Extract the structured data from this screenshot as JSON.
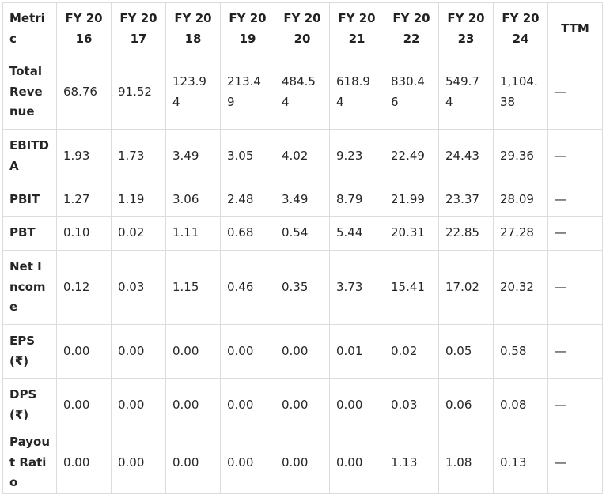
{
  "table": {
    "headers": [
      "Metric",
      "FY 2016",
      "FY 2017",
      "FY 2018",
      "FY 2019",
      "FY 2020",
      "FY 2021",
      "FY 2022",
      "FY 2023",
      "FY 2024",
      "TTM"
    ],
    "rows": [
      {
        "metric": "Total Revenue",
        "values": [
          "68.76",
          "91.52",
          "123.94",
          "213.49",
          "484.54",
          "618.94",
          "830.46",
          "549.74",
          "1,104.38",
          "—"
        ]
      },
      {
        "metric": "EBITDA",
        "values": [
          "1.93",
          "1.73",
          "3.49",
          "3.05",
          "4.02",
          "9.23",
          "22.49",
          "24.43",
          "29.36",
          "—"
        ]
      },
      {
        "metric": "PBIT",
        "values": [
          "1.27",
          "1.19",
          "3.06",
          "2.48",
          "3.49",
          "8.79",
          "21.99",
          "23.37",
          "28.09",
          "—"
        ]
      },
      {
        "metric": "PBT",
        "values": [
          "0.10",
          "0.02",
          "1.11",
          "0.68",
          "0.54",
          "5.44",
          "20.31",
          "22.85",
          "27.28",
          "—"
        ]
      },
      {
        "metric": "Net Income",
        "values": [
          "0.12",
          "0.03",
          "1.15",
          "0.46",
          "0.35",
          "3.73",
          "15.41",
          "17.02",
          "20.32",
          "—"
        ]
      },
      {
        "metric": "EPS (₹)",
        "values": [
          "0.00",
          "0.00",
          "0.00",
          "0.00",
          "0.00",
          "0.01",
          "0.02",
          "0.05",
          "0.58",
          "—"
        ]
      },
      {
        "metric": "DPS (₹)",
        "values": [
          "0.00",
          "0.00",
          "0.00",
          "0.00",
          "0.00",
          "0.00",
          "0.03",
          "0.06",
          "0.08",
          "—"
        ]
      },
      {
        "metric": "Payout Ratio",
        "values": [
          "0.00",
          "0.00",
          "0.00",
          "0.00",
          "0.00",
          "0.00",
          "1.13",
          "1.08",
          "0.13",
          "—"
        ]
      }
    ]
  }
}
